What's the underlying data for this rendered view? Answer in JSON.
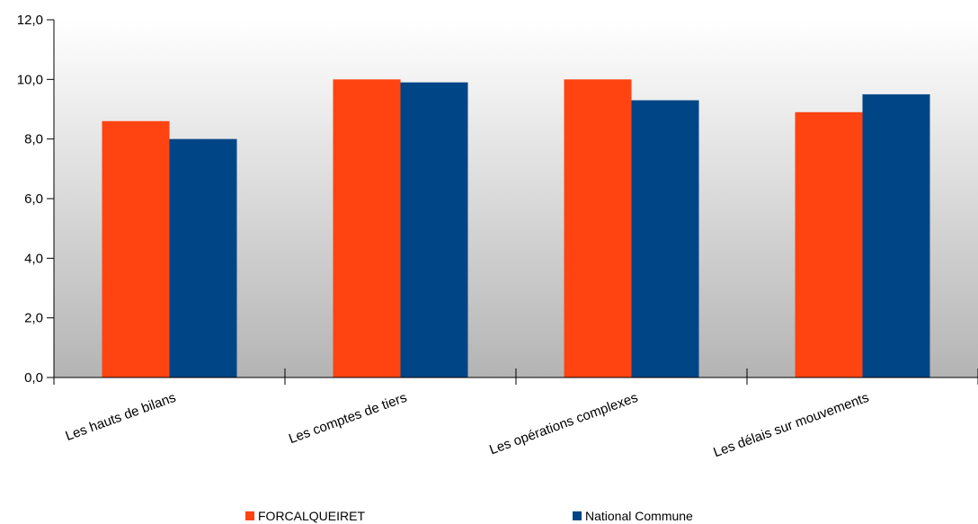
{
  "chart_data": {
    "type": "bar",
    "categories": [
      "Les hauts de bilans",
      "Les comptes de tiers",
      "Les opérations complexes",
      "Les délais sur mouvements"
    ],
    "series": [
      {
        "name": "FORCALQUEIRET",
        "values": [
          8.6,
          10.0,
          10.0,
          8.9
        ],
        "color": "#ff4411"
      },
      {
        "name": "National Commune",
        "values": [
          8.0,
          9.9,
          9.3,
          9.5
        ],
        "color": "#004586"
      }
    ],
    "ylim": [
      0,
      12
    ],
    "yticks": [
      "0,0",
      "2,0",
      "4,0",
      "6,0",
      "8,0",
      "10,0",
      "12,0"
    ],
    "ytick_values": [
      0,
      2,
      4,
      6,
      8,
      10,
      12
    ],
    "grid": false,
    "legend_position": "bottom",
    "background": "gradient white-to-gray"
  }
}
